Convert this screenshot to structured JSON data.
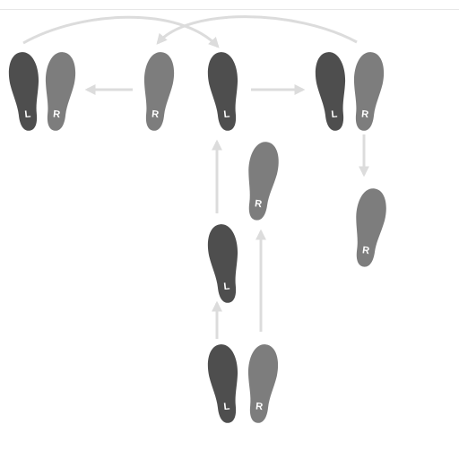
{
  "diagram": {
    "left_label": "L",
    "right_label": "R",
    "colors": {
      "left_foot": "#4e4e4e",
      "right_foot": "#7d7d7d",
      "arrow": "#dcdcdc",
      "label": "#ffffff",
      "rule": "#e6e6e6"
    }
  }
}
